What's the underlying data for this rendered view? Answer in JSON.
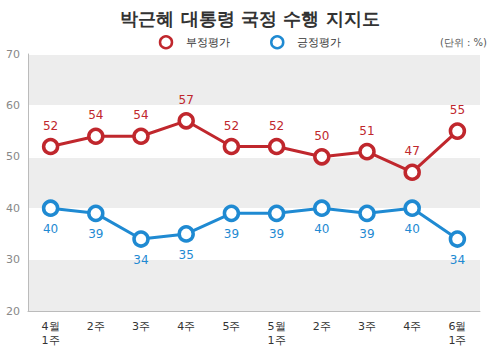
{
  "chart_data": {
    "type": "line",
    "title": "박근혜 대통령 국정 수행 지지도",
    "subtitle": "(단위 : %)",
    "categories": [
      "4월\n1주",
      "2주",
      "3주",
      "4주",
      "5주",
      "5월\n1주",
      "2주",
      "3주",
      "4주",
      "6월\n1주"
    ],
    "series": [
      {
        "name": "부정평가",
        "color": "#c0272d",
        "values": [
          52,
          54,
          54,
          57,
          52,
          52,
          50,
          51,
          47,
          55
        ]
      },
      {
        "name": "긍정평가",
        "color": "#1f8ad2",
        "values": [
          40,
          39,
          34,
          35,
          39,
          39,
          40,
          39,
          40,
          34
        ]
      }
    ],
    "ylim": [
      20,
      70
    ],
    "yticks": [
      20,
      30,
      40,
      50,
      60,
      70
    ],
    "grid": true,
    "legend": "top",
    "data_labels": true,
    "marker": "circle",
    "line_style": "solid"
  }
}
